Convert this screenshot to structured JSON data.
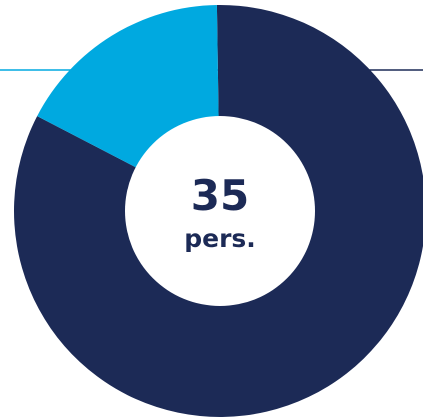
{
  "chart_data": {
    "type": "donut",
    "values": [
      29,
      6
    ],
    "colors": [
      "#1c2a56",
      "#00a9e0"
    ],
    "center_value": "35",
    "center_label": "pers."
  }
}
